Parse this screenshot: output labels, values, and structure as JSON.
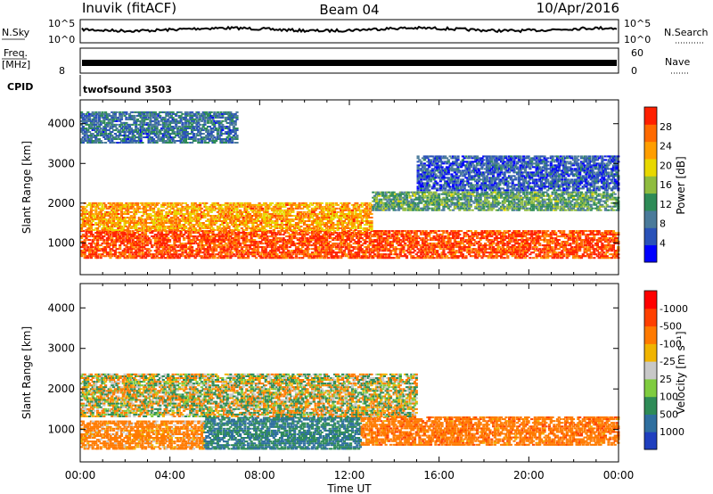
{
  "header": {
    "radar": "Inuvik (fitACF)",
    "beam": "Beam 04",
    "date": "10/Apr/2016"
  },
  "top_panels": {
    "nsky": {
      "label": "N.Sky",
      "tick_top": "10^5",
      "tick_bottom": "10^0",
      "right_label": "N.Search",
      "right_tick_top": "10^5",
      "right_tick_bottom": "10^0"
    },
    "freq": {
      "label_1": "Freq.",
      "label_2": "[MHz]",
      "tick_top": "",
      "tick_bottom": "8",
      "right_label": "Nave",
      "right_tick_top": "60",
      "right_tick_bottom": "0"
    },
    "cpid": {
      "label": "CPID",
      "value": "twofsound 3503"
    }
  },
  "chart_data": [
    {
      "type": "heatmap",
      "panel": "power",
      "xlabel": "",
      "ylabel": "Slant Range [km]",
      "yticks": [
        "1000",
        "2000",
        "3000",
        "4000"
      ],
      "ylim": [
        200,
        4600
      ],
      "xlim": [
        0,
        24
      ],
      "colorbar": {
        "label": "Power [dB]",
        "ticks": [
          "4",
          "8",
          "12",
          "16",
          "20",
          "24",
          "28"
        ],
        "colors": [
          "#0000ff",
          "#2a52b8",
          "#4a7a9a",
          "#2e8b57",
          "#8fbc3f",
          "#e8d800",
          "#ff9e00",
          "#ff6a00",
          "#ff2000"
        ],
        "range": [
          0,
          30
        ]
      },
      "bands": [
        {
          "range_km": [
            600,
            1300
          ],
          "start_h": 0.0,
          "end_h": 24.0,
          "power_db": 27
        },
        {
          "range_km": [
            1300,
            2000
          ],
          "start_h": 0.0,
          "end_h": 13.0,
          "power_db": 22
        },
        {
          "range_km": [
            1800,
            2300
          ],
          "start_h": 13.0,
          "end_h": 24.0,
          "power_db": 12
        },
        {
          "range_km": [
            3500,
            4300
          ],
          "start_h": 0.0,
          "end_h": 7.0,
          "power_db": 8
        },
        {
          "range_km": [
            2300,
            3200
          ],
          "start_h": 15.0,
          "end_h": 24.0,
          "power_db": 6
        }
      ]
    },
    {
      "type": "heatmap",
      "panel": "velocity",
      "xlabel": "Time UT",
      "ylabel": "Slant Range [km]",
      "yticks": [
        "1000",
        "2000",
        "3000",
        "4000"
      ],
      "xticks": [
        "00:00",
        "04:00",
        "08:00",
        "12:00",
        "16:00",
        "20:00",
        "00:00"
      ],
      "ylim": [
        200,
        4600
      ],
      "xlim": [
        0,
        24
      ],
      "colorbar": {
        "label": "Velocity [m s⁻¹]",
        "ticks": [
          "1000",
          "500",
          "100",
          "25",
          "-25",
          "-100",
          "-500",
          "-1000"
        ],
        "colors": [
          "#1f3fbf",
          "#2f6f9f",
          "#2e8b57",
          "#7fcc3f",
          "#c8c8c8",
          "#f0b400",
          "#ff7a00",
          "#ff4000",
          "#ff0000"
        ]
      },
      "bands": [
        {
          "range_km": [
            500,
            1200
          ],
          "start_h": 0.0,
          "end_h": 5.5,
          "velocity": -150
        },
        {
          "range_km": [
            500,
            1300
          ],
          "start_h": 5.5,
          "end_h": 12.5,
          "velocity": 300
        },
        {
          "range_km": [
            600,
            1300
          ],
          "start_h": 12.5,
          "end_h": 24.0,
          "velocity": -200
        },
        {
          "range_km": [
            1300,
            2400
          ],
          "start_h": 0.0,
          "end_h": 15.0,
          "velocity": 0
        }
      ]
    }
  ]
}
